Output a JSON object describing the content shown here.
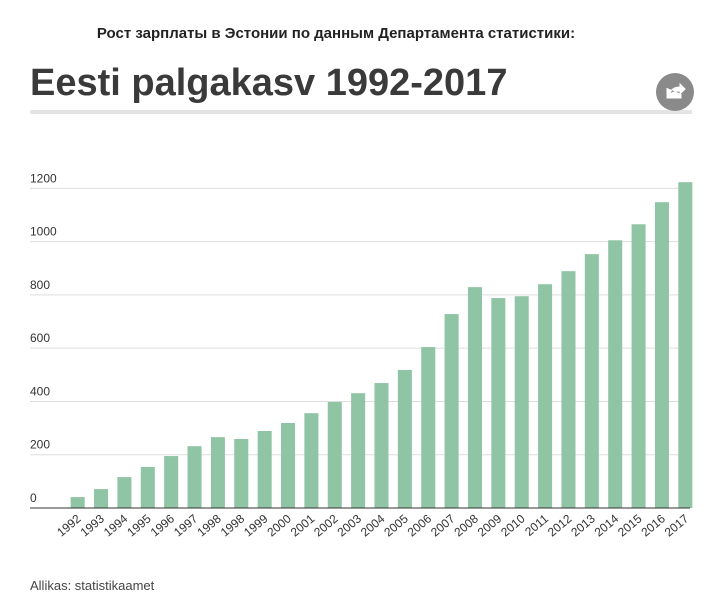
{
  "header": "Рост зарплаты в Эстонии по данным Департамента статистики:",
  "chart_data": {
    "type": "bar",
    "title": "Eesti palgakasv 1992-2017",
    "categories": [
      "1992",
      "1993",
      "1994",
      "1995",
      "1996",
      "1997",
      "1998",
      "1998",
      "1999",
      "2000",
      "2001",
      "2002",
      "2003",
      "2004",
      "2005",
      "2006",
      "2007",
      "2008",
      "2009",
      "2010",
      "2011",
      "2012",
      "2013",
      "2014",
      "2015",
      "2016",
      "2017"
    ],
    "values": [
      41,
      71,
      116,
      154,
      195,
      232,
      266,
      259,
      289,
      319,
      356,
      398,
      431,
      469,
      518,
      604,
      728,
      829,
      788,
      795,
      840,
      889,
      953,
      1005,
      1065,
      1148,
      1223
    ],
    "color": "#8fc4a5",
    "ylim": [
      0,
      1250
    ],
    "yticks": [
      0,
      200,
      400,
      600,
      800,
      1000,
      1200
    ],
    "grid": true
  },
  "source": "Allikas: statistikaamet"
}
